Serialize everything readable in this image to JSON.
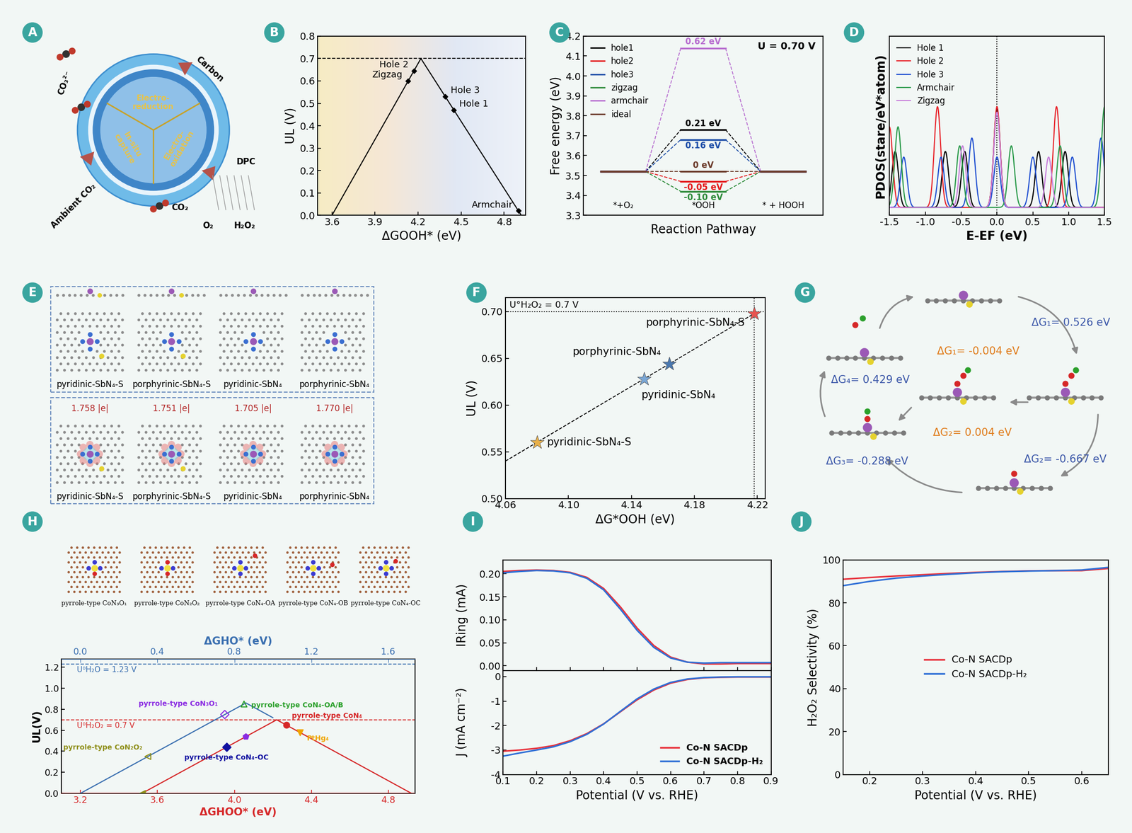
{
  "panel_labels": [
    "A",
    "B",
    "C",
    "D",
    "E",
    "F",
    "G",
    "H",
    "I",
    "J"
  ],
  "chart_data": [
    {
      "type": "line",
      "xlabel": "ΔGOOH* (eV)",
      "ylabel": "UL (V)",
      "xlim": [
        3.5,
        4.95
      ],
      "xticks": [
        3.6,
        3.9,
        4.2,
        4.5,
        4.8
      ],
      "ylim": [
        0.0,
        0.8
      ],
      "yticks": [
        0.0,
        0.1,
        0.2,
        0.3,
        0.4,
        0.5,
        0.6,
        0.7,
        0.8
      ],
      "series": [
        {
          "x": [
            3.6,
            4.22,
            4.92
          ],
          "values": [
            0.0,
            0.7,
            0.0
          ],
          "color": "#000000",
          "line_style": "solid"
        }
      ],
      "reference_lines": [
        {
          "y": 0.7,
          "line_style": "dashed",
          "color": "#000000"
        }
      ],
      "marker": "diamond",
      "points": [
        {
          "label": "Hole 2",
          "x": 4.171,
          "y": 0.645
        },
        {
          "label": "Zigzag",
          "x": 4.131,
          "y": 0.6
        },
        {
          "label": "Hole 3",
          "x": 4.39,
          "y": 0.53
        },
        {
          "label": "Hole 1",
          "x": 4.45,
          "y": 0.47
        },
        {
          "label": "Armchair",
          "x": 4.9,
          "y": 0.02
        }
      ]
    },
    {
      "type": "line",
      "xlabel": "Reaction Pathway",
      "ylabel": "Free energy (eV)",
      "annotation": "U = 0.70 V",
      "categories": [
        "*+O₂",
        "*OOH",
        "* + HOOH"
      ],
      "ylim": [
        3.3,
        4.2
      ],
      "yticks": [
        3.3,
        3.4,
        3.5,
        3.6,
        3.7,
        3.8,
        3.9,
        4.0,
        4.1,
        4.2
      ],
      "tick_labels": "y",
      "legend": "upper left",
      "series": [
        {
          "name": "hole1",
          "color": "#000000",
          "values": [
            3.52,
            3.73,
            3.52
          ],
          "annotation": "0.21 eV"
        },
        {
          "name": "hole2",
          "color": "#e41a1c",
          "values": [
            3.52,
            3.47,
            3.52
          ],
          "annotation": "-0.05 eV"
        },
        {
          "name": "hole3",
          "color": "#1f4fa8",
          "values": [
            3.52,
            3.68,
            3.52
          ],
          "annotation": "0.16 eV"
        },
        {
          "name": "zigzag",
          "color": "#2e8b3a",
          "values": [
            3.52,
            3.42,
            3.52
          ],
          "annotation": "-0.10 eV"
        },
        {
          "name": "armchair",
          "color": "#b86fd0",
          "values": [
            3.52,
            4.14,
            3.52
          ],
          "annotation": "0.62 eV"
        },
        {
          "name": "ideal",
          "color": "#6b3a2a",
          "values": [
            3.52,
            3.52,
            3.52
          ],
          "annotation": "0 eV"
        }
      ]
    },
    {
      "type": "line",
      "xlabel": "E-EF (eV)",
      "ylabel": "PDOS(stare/eV*atom)",
      "xlim": [
        -1.5,
        1.5
      ],
      "xticks": [
        -1.5,
        -1.0,
        -0.5,
        0.0,
        0.5,
        1.0,
        1.5
      ],
      "ylim": [
        0.0,
        1.6
      ],
      "tick_labels": "x",
      "legend": "upper left",
      "baseline": 0.07,
      "reference_lines": [
        {
          "x": 0.0,
          "line_style": "dotted",
          "color": "#000000"
        }
      ],
      "series": [
        {
          "name": "Hole 1",
          "color": "#000000",
          "peaks": [
            [
              -1.42,
              0.5
            ],
            [
              -0.72,
              0.5
            ],
            [
              -0.45,
              0.5
            ],
            [
              0.0,
              0.88
            ],
            [
              0.58,
              0.5
            ],
            [
              0.95,
              0.5
            ]
          ]
        },
        {
          "name": "Hole 2",
          "color": "#e8232a",
          "peaks": [
            [
              -1.5,
              0.72
            ],
            [
              -0.83,
              0.9
            ],
            [
              0.0,
              0.9
            ],
            [
              0.83,
              0.9
            ]
          ]
        },
        {
          "name": "Hole 3",
          "color": "#1f4fd1",
          "peaks": [
            [
              -1.3,
              0.45
            ],
            [
              -0.78,
              0.45
            ],
            [
              -0.35,
              0.62
            ],
            [
              0.0,
              0.45
            ],
            [
              0.5,
              0.45
            ],
            [
              1.05,
              0.45
            ],
            [
              1.45,
              0.62
            ]
          ]
        },
        {
          "name": "Armchair",
          "color": "#2a9a4a",
          "peaks": [
            [
              -1.38,
              0.72
            ],
            [
              -0.52,
              0.55
            ],
            [
              0.2,
              0.55
            ],
            [
              0.88,
              0.55
            ],
            [
              1.5,
              0.9
            ]
          ]
        },
        {
          "name": "Zigzag",
          "color": "#c77ddb",
          "peaks": [
            [
              -0.48,
              0.55
            ],
            [
              0.0,
              0.85
            ],
            [
              0.72,
              0.45
            ]
          ]
        }
      ]
    },
    {
      "type": "scatter",
      "xlabel": "ΔG*OOH (eV)",
      "ylabel": "UL (V)",
      "xlim": [
        4.06,
        4.225
      ],
      "xticks": [
        {
          "value": 4.06,
          "label": "4.06"
        },
        {
          "value": 4.1,
          "label": "4.10"
        },
        {
          "value": 4.14,
          "label": "4.14"
        },
        {
          "value": 4.18,
          "label": "4.18"
        },
        {
          "value": 4.22,
          "label": "4.22"
        }
      ],
      "ylim": [
        0.5,
        0.715
      ],
      "yticks": [
        {
          "value": 0.5,
          "label": "0.50"
        },
        {
          "value": 0.55,
          "label": "0.55"
        },
        {
          "value": 0.6,
          "label": "0.60"
        },
        {
          "value": 0.65,
          "label": "0.65"
        },
        {
          "value": 0.7,
          "label": "0.70"
        }
      ],
      "marker": "star",
      "series": [
        {
          "x": [
            4.06,
            4.22
          ],
          "values": [
            0.54,
            0.7
          ],
          "color": "#000000",
          "line_style": "dashed"
        }
      ],
      "reference_lines": [
        {
          "y": 0.7,
          "line_style": "dotted",
          "color": "#000000",
          "label": "U°H₂O₂ = 0.7 V"
        },
        {
          "x": 4.218,
          "line_style": "dotted",
          "color": "#000000"
        }
      ],
      "points": [
        {
          "label": "pyridinic-SbN₄-S",
          "x": 4.08,
          "y": 0.56,
          "color": "#e8b04a"
        },
        {
          "label": "pyridinic-SbN₄",
          "x": 4.148,
          "y": 0.628,
          "color": "#7aa7d6"
        },
        {
          "label": "porphyrinic-SbN₄",
          "x": 4.164,
          "y": 0.644,
          "color": "#4a78b0"
        },
        {
          "label": "porphyrinic-SbN₄-S",
          "x": 4.218,
          "y": 0.698,
          "color": "#e8534f"
        }
      ]
    },
    {
      "type": "line",
      "xlabel": "ΔGHOO* (eV)",
      "x2label": "ΔGHO* (eV)",
      "ylabel": "UL(V)",
      "xlim": [
        3.1,
        4.94
      ],
      "xticks": [
        3.2,
        3.6,
        4.0,
        4.4,
        4.8
      ],
      "x2lim": [
        -0.1,
        1.74
      ],
      "x2ticks": [
        0.0,
        0.4,
        0.8,
        1.2,
        1.6
      ],
      "ylim": [
        0.0,
        1.28
      ],
      "yticks": [
        0.0,
        0.2,
        0.4,
        0.6,
        0.8,
        1.0,
        1.2
      ],
      "series": [
        {
          "x": [
            3.52,
            4.22,
            4.92
          ],
          "values": [
            0.0,
            0.7,
            0.0
          ],
          "color": "#d62728",
          "line_style": "solid"
        },
        {
          "axis": "x2",
          "x": [
            0.0,
            0.86,
            1.0
          ],
          "values": [
            0.0,
            0.86,
            0.72
          ],
          "color": "#3a6fb0",
          "line_style": "solid"
        }
      ],
      "reference_lines": [
        {
          "y": 1.23,
          "label": "U⁰H₂O = 1.23 V",
          "color": "#3a6fb0",
          "line_style": "dashed"
        },
        {
          "y": 0.7,
          "label": "U⁰H₂O₂ = 0.7 V",
          "color": "#d62728",
          "line_style": "dashed"
        }
      ],
      "points": [
        {
          "label": "pyrrole-type CoN₃O₁",
          "axis": "x2",
          "x": 0.75,
          "y": 0.75,
          "marker": "diamond_open",
          "color": "#8a2be2"
        },
        {
          "label": "pyrrole-type CoN₄-OA/B",
          "axis": "x2",
          "x": 0.85,
          "y": 0.85,
          "marker": "triangle_open",
          "color": "#2ca02c"
        },
        {
          "label": "pyrrole-type CoN₂O₂",
          "axis": "x2",
          "x": 0.35,
          "y": 0.35,
          "marker": "triangle_left_open",
          "color": "#8f8f1a"
        },
        {
          "label": "pyrrole-type CoN₄",
          "x": 4.27,
          "y": 0.65,
          "marker": "circle",
          "color": "#d62728"
        },
        {
          "label": "PtHg₄",
          "x": 4.34,
          "y": 0.58,
          "marker": "triangle_down",
          "color": "#f0a500"
        },
        {
          "label": "pyrrole-type CoN₄-OC",
          "x": 3.96,
          "y": 0.44,
          "marker": "diamond",
          "color": "#1010a0"
        },
        {
          "label": null,
          "x": 4.06,
          "y": 0.54,
          "marker": "pentagon",
          "color": "#8a2be2"
        },
        {
          "label": null,
          "x": 3.52,
          "y": 0.0,
          "marker": "triangle_left",
          "color": "#8f8f1a"
        }
      ]
    },
    {
      "type": "line",
      "xlabel": "Potential (V vs. RHE)",
      "x": [
        0.1,
        0.15,
        0.2,
        0.25,
        0.3,
        0.35,
        0.4,
        0.45,
        0.5,
        0.55,
        0.6,
        0.65,
        0.7,
        0.75,
        0.8,
        0.85,
        0.9
      ],
      "xlim": [
        0.1,
        0.9
      ],
      "xticks": [
        0.1,
        0.2,
        0.3,
        0.4,
        0.5,
        0.6,
        0.7,
        0.8,
        0.9
      ],
      "subplots": [
        {
          "ylabel": "IRing (mA)",
          "ylim": [
            -0.01,
            0.23
          ],
          "yticks": [
            {
              "value": 0.0,
              "label": "0.00"
            },
            {
              "value": 0.05,
              "label": "0.05"
            },
            {
              "value": 0.1,
              "label": "0.10"
            },
            {
              "value": 0.15,
              "label": "0.15"
            },
            {
              "value": 0.2,
              "label": "0.20"
            }
          ],
          "series": [
            {
              "color": "#e8323c",
              "values": [
                0.205,
                0.207,
                0.208,
                0.207,
                0.203,
                0.192,
                0.168,
                0.128,
                0.082,
                0.044,
                0.019,
                0.008,
                0.004,
                0.004,
                0.005,
                0.005,
                0.005
              ]
            },
            {
              "color": "#2f6fd6",
              "values": [
                0.202,
                0.205,
                0.207,
                0.206,
                0.202,
                0.19,
                0.165,
                0.123,
                0.077,
                0.04,
                0.017,
                0.008,
                0.006,
                0.007,
                0.007,
                0.007,
                0.007
              ]
            }
          ]
        },
        {
          "ylabel": "J (mA cm⁻²)",
          "ylim": [
            -4.0,
            0.25
          ],
          "yticks": [
            -4,
            -3,
            -2,
            -1,
            0
          ],
          "legend": "lower right",
          "series": [
            {
              "name": "Co-N SACDp",
              "color": "#e8323c",
              "values": [
                -3.05,
                -3.0,
                -2.93,
                -2.82,
                -2.62,
                -2.33,
                -1.93,
                -1.44,
                -0.95,
                -0.55,
                -0.27,
                -0.12,
                -0.05,
                -0.03,
                -0.02,
                -0.02,
                -0.02
              ]
            },
            {
              "name": "Co-N SACDp-H₂",
              "color": "#2f6fd6",
              "values": [
                -3.25,
                -3.12,
                -3.0,
                -2.87,
                -2.66,
                -2.36,
                -1.94,
                -1.42,
                -0.91,
                -0.51,
                -0.24,
                -0.1,
                -0.04,
                -0.02,
                -0.01,
                -0.01,
                -0.01
              ]
            }
          ]
        }
      ]
    },
    {
      "type": "line",
      "xlabel": "Potential (V vs. RHE)",
      "ylabel": "H₂O₂ Selectivity (%)",
      "x": [
        0.15,
        0.2,
        0.25,
        0.3,
        0.35,
        0.4,
        0.45,
        0.5,
        0.55,
        0.6,
        0.65
      ],
      "xlim": [
        0.15,
        0.65
      ],
      "xticks": [
        0.2,
        0.3,
        0.4,
        0.5,
        0.6
      ],
      "ylim": [
        0,
        100
      ],
      "yticks": [
        0,
        20,
        40,
        60,
        80,
        100
      ],
      "legend": "center",
      "series": [
        {
          "name": "Co-N SACDp",
          "color": "#e8323c",
          "values": [
            91,
            91.8,
            92.5,
            93.1,
            93.7,
            94.2,
            94.6,
            94.9,
            95,
            95,
            96
          ]
        },
        {
          "name": "Co-N SACDp-H₂",
          "color": "#2f6fd6",
          "values": [
            88,
            90,
            91.5,
            92.5,
            93.3,
            94,
            94.5,
            94.8,
            95,
            95.3,
            96.5
          ]
        }
      ]
    }
  ],
  "diagrams": {
    "A": {
      "center_texts": [
        "Electro-\nreduction",
        "In-situ\ncapture",
        "Electro-\noxidation"
      ],
      "outer_texts": [
        "Carbon",
        "CO₃²⁻",
        "Ambient CO₂",
        "CO₂",
        "DPC",
        "O₂",
        "H₂O₂"
      ]
    },
    "E": {
      "captions": [
        "pyridinic-SbN₄-S",
        "porphyrinic-SbN₄-S",
        "pyridinic-SbN₄",
        "porphyrinic-SbN₄"
      ],
      "charges": [
        "1.758 |e|",
        "1.751 |e|",
        "1.705 |e|",
        "1.770 |e|"
      ]
    },
    "G": {
      "labels": [
        {
          "text": "ΔG₁= 0.526 eV",
          "color": "#3a56a8"
        },
        {
          "text": "ΔG₁= -0.004 eV",
          "color": "#e07b1a"
        },
        {
          "text": "ΔG₂= 0.004 eV",
          "color": "#e07b1a"
        },
        {
          "text": "ΔG₂= -0.667 eV",
          "color": "#3a56a8"
        },
        {
          "text": "ΔG₃= -0.288 eV",
          "color": "#3a56a8"
        },
        {
          "text": "ΔG₄= 0.429 eV",
          "color": "#3a56a8"
        }
      ]
    },
    "H": {
      "captions": [
        "pyrrole-type CoN₃O₁",
        "pyrrole-type CoN₂O₂",
        "pyrrole-type CoN₄-OA",
        "pyrrole-type CoN₄-OB",
        "pyrrole-type CoN₄-OC"
      ]
    }
  }
}
